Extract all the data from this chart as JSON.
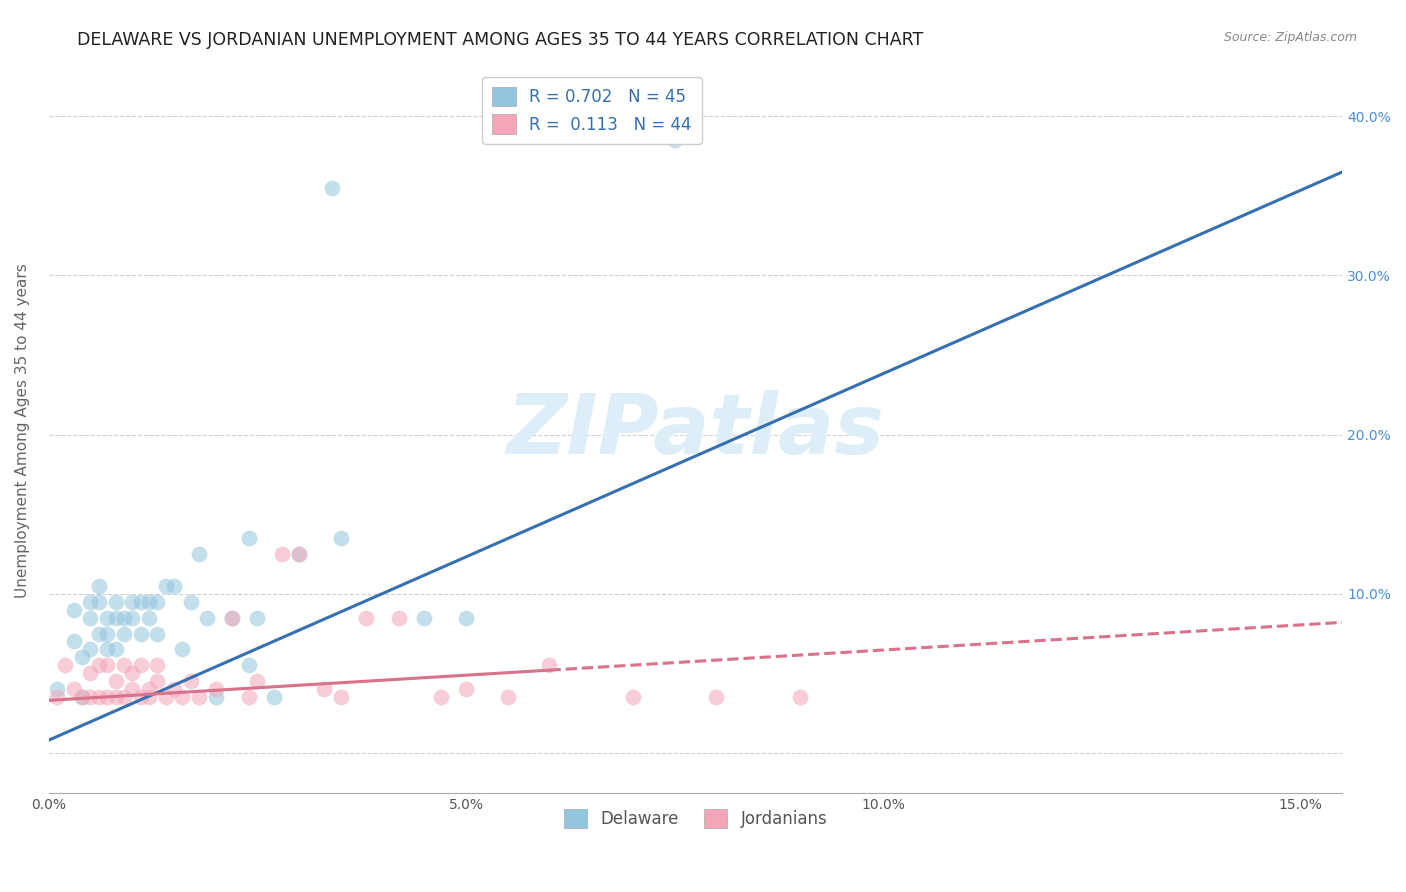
{
  "title": "DELAWARE VS JORDANIAN UNEMPLOYMENT AMONG AGES 35 TO 44 YEARS CORRELATION CHART",
  "source": "Source: ZipAtlas.com",
  "ylabel": "Unemployment Among Ages 35 to 44 years",
  "xlim": [
    0.0,
    0.155
  ],
  "ylim": [
    -0.025,
    0.43
  ],
  "watermark": "ZIPatlas",
  "background_color": "#ffffff",
  "grid_color": "#d0d0d0",
  "delaware_color": "#92c5de",
  "jordanian_color": "#f4a5b8",
  "delaware_line_color": "#3670b0",
  "jordanian_line_color": "#d9728a",
  "R_delaware": 0.702,
  "N_delaware": 45,
  "R_jordanian": 0.113,
  "N_jordanian": 44,
  "delaware_scatter_x": [
    0.001,
    0.003,
    0.003,
    0.004,
    0.004,
    0.005,
    0.005,
    0.005,
    0.006,
    0.006,
    0.006,
    0.007,
    0.007,
    0.007,
    0.008,
    0.008,
    0.008,
    0.009,
    0.009,
    0.01,
    0.01,
    0.011,
    0.011,
    0.012,
    0.012,
    0.013,
    0.013,
    0.014,
    0.015,
    0.016,
    0.017,
    0.018,
    0.019,
    0.02,
    0.022,
    0.024,
    0.024,
    0.025,
    0.027,
    0.03,
    0.034,
    0.035,
    0.045,
    0.05,
    0.075
  ],
  "delaware_scatter_y": [
    0.04,
    0.07,
    0.09,
    0.06,
    0.035,
    0.065,
    0.085,
    0.095,
    0.075,
    0.095,
    0.105,
    0.085,
    0.065,
    0.075,
    0.065,
    0.085,
    0.095,
    0.085,
    0.075,
    0.085,
    0.095,
    0.095,
    0.075,
    0.085,
    0.095,
    0.095,
    0.075,
    0.105,
    0.105,
    0.065,
    0.095,
    0.125,
    0.085,
    0.035,
    0.085,
    0.135,
    0.055,
    0.085,
    0.035,
    0.125,
    0.355,
    0.135,
    0.085,
    0.085,
    0.385
  ],
  "jordanian_scatter_x": [
    0.001,
    0.002,
    0.003,
    0.004,
    0.005,
    0.005,
    0.006,
    0.006,
    0.007,
    0.007,
    0.008,
    0.008,
    0.009,
    0.009,
    0.01,
    0.01,
    0.011,
    0.011,
    0.012,
    0.012,
    0.013,
    0.013,
    0.014,
    0.015,
    0.016,
    0.017,
    0.018,
    0.02,
    0.022,
    0.024,
    0.025,
    0.028,
    0.03,
    0.033,
    0.035,
    0.038,
    0.042,
    0.047,
    0.05,
    0.055,
    0.06,
    0.07,
    0.08,
    0.09
  ],
  "jordanian_scatter_y": [
    0.035,
    0.055,
    0.04,
    0.035,
    0.05,
    0.035,
    0.055,
    0.035,
    0.055,
    0.035,
    0.045,
    0.035,
    0.035,
    0.055,
    0.04,
    0.05,
    0.055,
    0.035,
    0.04,
    0.035,
    0.045,
    0.055,
    0.035,
    0.04,
    0.035,
    0.045,
    0.035,
    0.04,
    0.085,
    0.035,
    0.045,
    0.125,
    0.125,
    0.04,
    0.035,
    0.085,
    0.085,
    0.035,
    0.04,
    0.035,
    0.055,
    0.035,
    0.035,
    0.035
  ],
  "delaware_line_x0": 0.0,
  "delaware_line_x1": 0.155,
  "delaware_line_y0": 0.008,
  "delaware_line_y1": 0.365,
  "jordanian_line_solid_x0": 0.0,
  "jordanian_line_solid_x1": 0.06,
  "jordanian_line_dashed_x0": 0.06,
  "jordanian_line_dashed_x1": 0.155,
  "jordanian_line_y0": 0.033,
  "jordanian_line_y1": 0.082,
  "title_fontsize": 12.5,
  "axis_label_fontsize": 11,
  "tick_fontsize": 10,
  "legend_fontsize": 12,
  "watermark_fontsize": 60,
  "watermark_color": "#ddeef8",
  "right_ytick_color": "#4a90d9",
  "xtick_positions": [
    0.0,
    0.025,
    0.05,
    0.075,
    0.1,
    0.125,
    0.15
  ],
  "ytick_positions": [
    0.0,
    0.1,
    0.2,
    0.3,
    0.4
  ]
}
